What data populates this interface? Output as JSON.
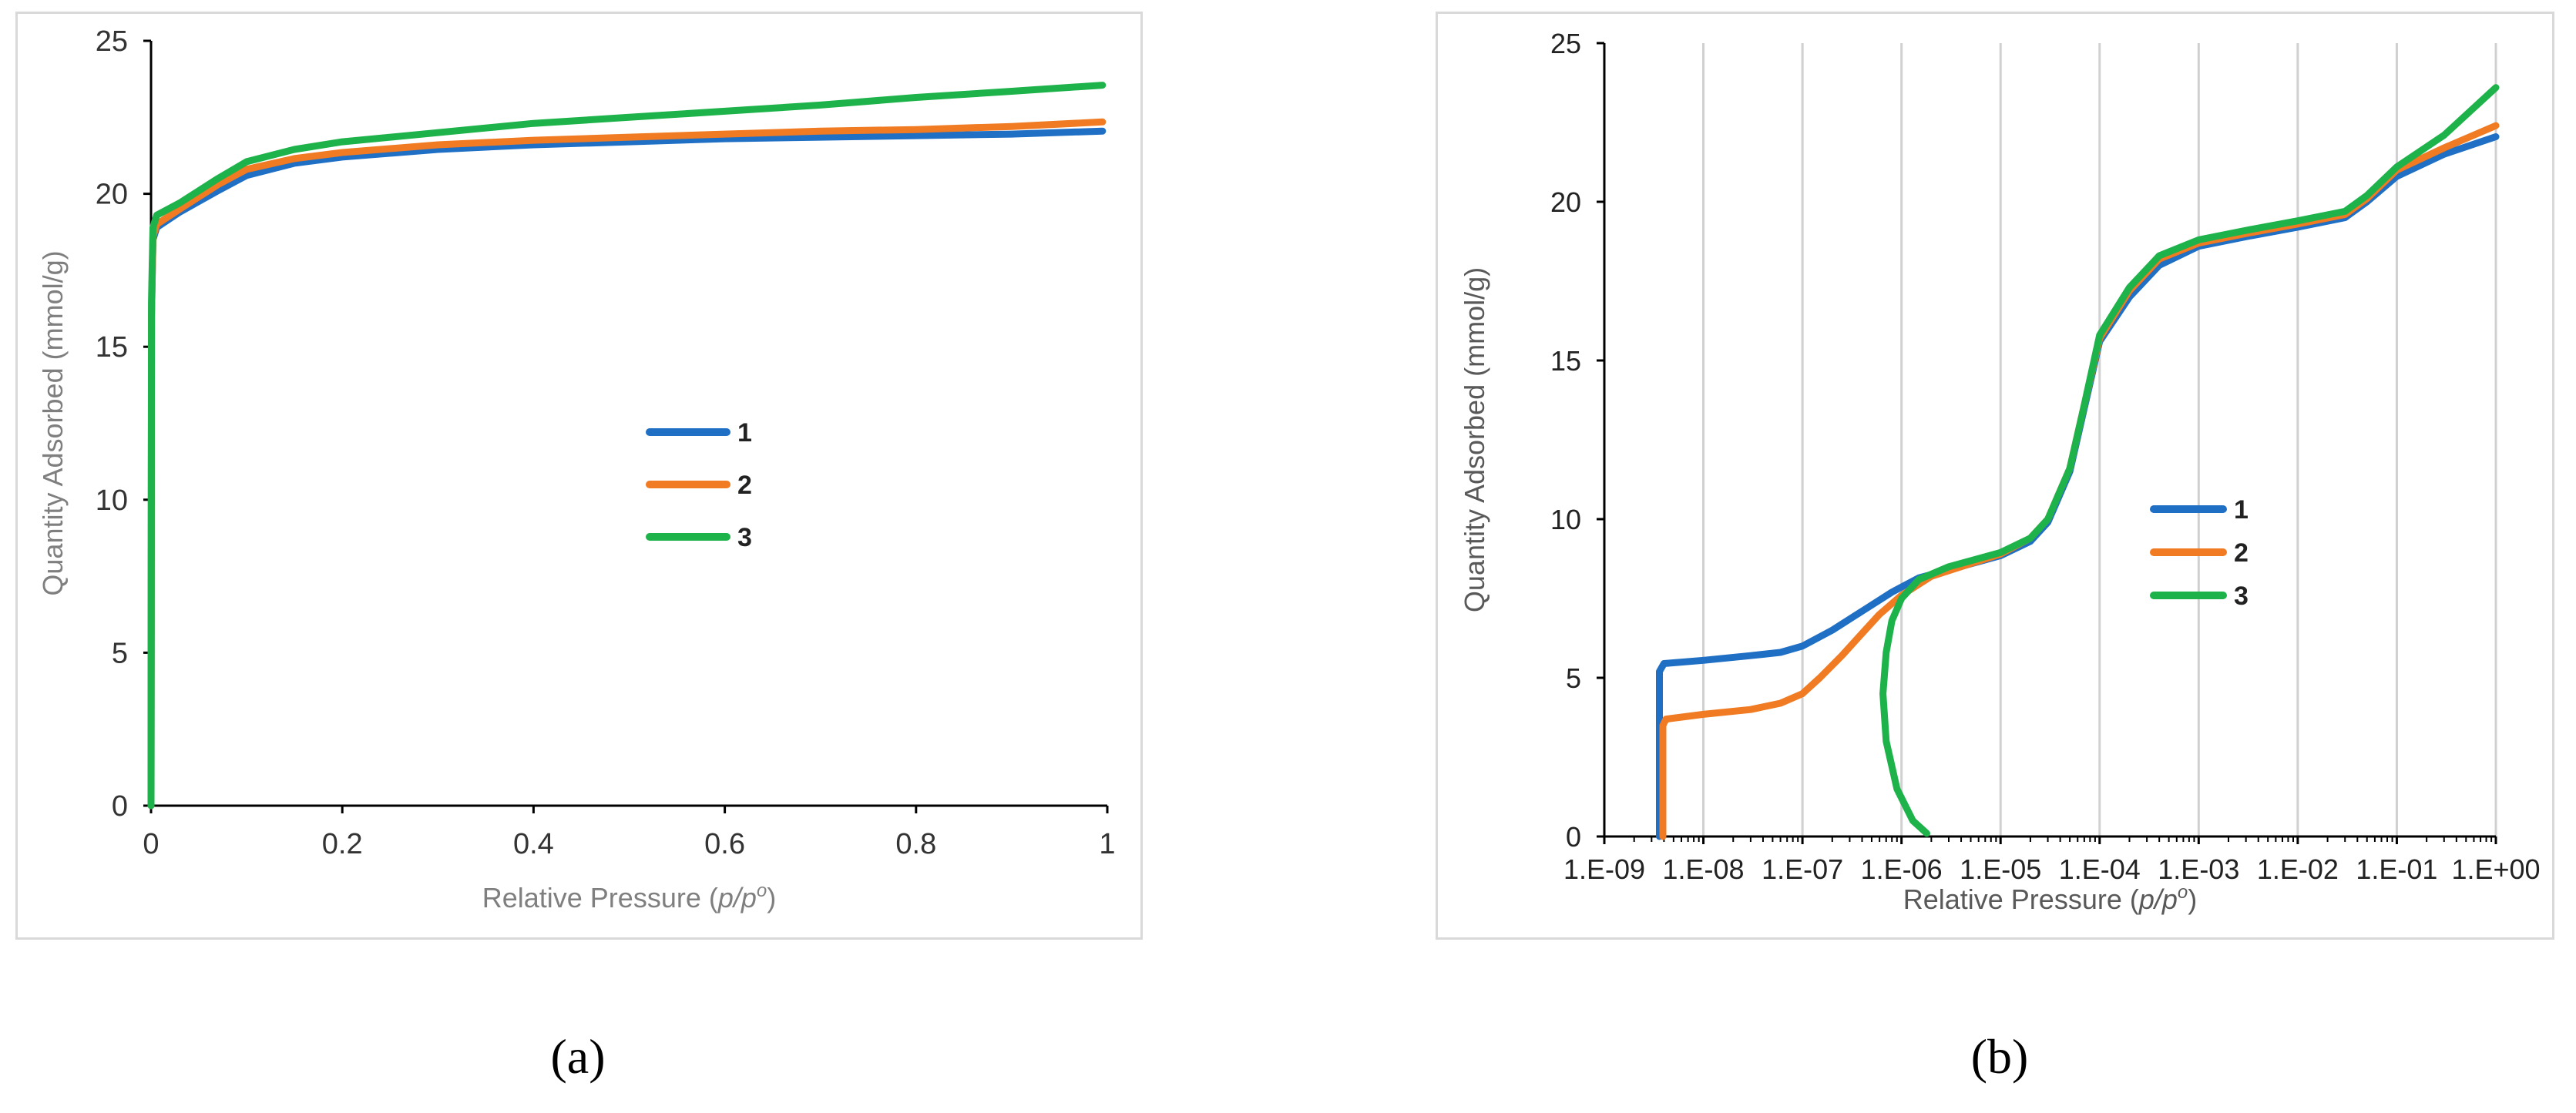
{
  "panels": [
    {
      "caption": "(a)",
      "ylabel": "Quantity Adsorbed (mmol/g)",
      "xlabel_prefix": "Relative Pressure (",
      "xlabel_italic": "p/p",
      "xlabel_sup": "o",
      "xlabel_suffix": ")"
    },
    {
      "caption": "(b)",
      "ylabel": "Quantity Adsorbed (mmol/g)",
      "xlabel_prefix": "Relative Pressure (",
      "xlabel_italic": "p/p",
      "xlabel_sup": "o",
      "xlabel_suffix": ")"
    }
  ],
  "chart_data": [
    {
      "type": "line",
      "title": "",
      "xlabel": "Relative Pressure (p/po)",
      "ylabel": "Quantity Adsorbed (mmol/g)",
      "xlim": [
        0,
        1
      ],
      "ylim": [
        0,
        25
      ],
      "xscale": "linear",
      "x_ticks": [
        "0",
        "0.2",
        "0.4",
        "0.6",
        "0.8",
        "1"
      ],
      "y_ticks": [
        "0",
        "5",
        "10",
        "15",
        "20",
        "25"
      ],
      "grid": false,
      "legend_position": "center",
      "series": [
        {
          "name": "1",
          "color": "#1f6fc5",
          "points": [
            [
              0,
              0
            ],
            [
              0.0005,
              16
            ],
            [
              0.002,
              18.5
            ],
            [
              0.006,
              18.9
            ],
            [
              0.03,
              19.4
            ],
            [
              0.07,
              20.1
            ],
            [
              0.1,
              20.6
            ],
            [
              0.15,
              21.0
            ],
            [
              0.2,
              21.2
            ],
            [
              0.3,
              21.45
            ],
            [
              0.4,
              21.6
            ],
            [
              0.5,
              21.7
            ],
            [
              0.6,
              21.8
            ],
            [
              0.7,
              21.85
            ],
            [
              0.8,
              21.9
            ],
            [
              0.9,
              21.95
            ],
            [
              0.995,
              22.05
            ]
          ]
        },
        {
          "name": "2",
          "color": "#f07b22",
          "points": [
            [
              0,
              0
            ],
            [
              0.0005,
              16
            ],
            [
              0.002,
              18.6
            ],
            [
              0.006,
              19.0
            ],
            [
              0.03,
              19.5
            ],
            [
              0.07,
              20.3
            ],
            [
              0.1,
              20.8
            ],
            [
              0.15,
              21.15
            ],
            [
              0.2,
              21.35
            ],
            [
              0.3,
              21.6
            ],
            [
              0.4,
              21.75
            ],
            [
              0.5,
              21.85
            ],
            [
              0.6,
              21.95
            ],
            [
              0.7,
              22.05
            ],
            [
              0.8,
              22.1
            ],
            [
              0.9,
              22.2
            ],
            [
              0.995,
              22.35
            ]
          ]
        },
        {
          "name": "3",
          "color": "#1db34a",
          "points": [
            [
              0,
              0
            ],
            [
              0.0005,
              16.5
            ],
            [
              0.002,
              18.9
            ],
            [
              0.006,
              19.3
            ],
            [
              0.03,
              19.7
            ],
            [
              0.07,
              20.5
            ],
            [
              0.1,
              21.05
            ],
            [
              0.15,
              21.45
            ],
            [
              0.2,
              21.7
            ],
            [
              0.3,
              22.0
            ],
            [
              0.4,
              22.3
            ],
            [
              0.5,
              22.5
            ],
            [
              0.6,
              22.7
            ],
            [
              0.7,
              22.9
            ],
            [
              0.8,
              23.15
            ],
            [
              0.9,
              23.35
            ],
            [
              0.995,
              23.55
            ]
          ]
        }
      ]
    },
    {
      "type": "line",
      "title": "",
      "xlabel": "Relative Pressure (p/po)",
      "ylabel": "Quantity Adsorbed (mmol/g)",
      "xlim": [
        1e-09,
        1
      ],
      "ylim": [
        0,
        25
      ],
      "xscale": "log",
      "x_ticks": [
        "1.E-09",
        "1.E-08",
        "1.E-07",
        "1.E-06",
        "1.E-05",
        "1.E-04",
        "1.E-03",
        "1.E-02",
        "1.E-01",
        "1.E+00"
      ],
      "y_ticks": [
        "0",
        "5",
        "10",
        "15",
        "20",
        "25"
      ],
      "grid": true,
      "legend_position": "center-right",
      "series": [
        {
          "name": "1",
          "color": "#1f6fc5",
          "points": [
            [
              3.6e-09,
              0
            ],
            [
              3.6e-09,
              5.2
            ],
            [
              4e-09,
              5.45
            ],
            [
              1e-08,
              5.55
            ],
            [
              3e-08,
              5.7
            ],
            [
              6e-08,
              5.8
            ],
            [
              1e-07,
              6.0
            ],
            [
              2e-07,
              6.5
            ],
            [
              4e-07,
              7.1
            ],
            [
              8e-07,
              7.7
            ],
            [
              1.5e-06,
              8.15
            ],
            [
              3e-06,
              8.4
            ],
            [
              1e-05,
              8.85
            ],
            [
              2e-05,
              9.3
            ],
            [
              3e-05,
              9.9
            ],
            [
              5e-05,
              11.5
            ],
            [
              7e-05,
              13.5
            ],
            [
              0.0001,
              15.6
            ],
            [
              0.0002,
              17.0
            ],
            [
              0.0004,
              18.0
            ],
            [
              0.001,
              18.6
            ],
            [
              0.003,
              18.9
            ],
            [
              0.01,
              19.2
            ],
            [
              0.03,
              19.5
            ],
            [
              0.05,
              20.0
            ],
            [
              0.1,
              20.8
            ],
            [
              0.3,
              21.5
            ],
            [
              1,
              22.05
            ]
          ]
        },
        {
          "name": "2",
          "color": "#f07b22",
          "points": [
            [
              3.9e-09,
              0
            ],
            [
              3.9e-09,
              3.5
            ],
            [
              4.2e-09,
              3.7
            ],
            [
              1e-08,
              3.85
            ],
            [
              3e-08,
              4.0
            ],
            [
              6e-08,
              4.2
            ],
            [
              1e-07,
              4.5
            ],
            [
              1.5e-07,
              5.0
            ],
            [
              2.5e-07,
              5.7
            ],
            [
              4e-07,
              6.4
            ],
            [
              6e-07,
              7.0
            ],
            [
              1e-06,
              7.6
            ],
            [
              2e-06,
              8.2
            ],
            [
              5e-06,
              8.6
            ],
            [
              1e-05,
              8.9
            ],
            [
              2e-05,
              9.4
            ],
            [
              3e-05,
              10.0
            ],
            [
              5e-05,
              11.6
            ],
            [
              7e-05,
              13.6
            ],
            [
              0.0001,
              15.7
            ],
            [
              0.0002,
              17.2
            ],
            [
              0.0004,
              18.2
            ],
            [
              0.001,
              18.7
            ],
            [
              0.003,
              19.0
            ],
            [
              0.01,
              19.3
            ],
            [
              0.03,
              19.6
            ],
            [
              0.05,
              20.1
            ],
            [
              0.1,
              21.0
            ],
            [
              0.3,
              21.7
            ],
            [
              1,
              22.4
            ]
          ]
        },
        {
          "name": "3",
          "color": "#1db34a",
          "points": [
            [
              1.8e-06,
              0.1
            ],
            [
              1.3e-06,
              0.5
            ],
            [
              9e-07,
              1.5
            ],
            [
              7e-07,
              3.0
            ],
            [
              6.5e-07,
              4.5
            ],
            [
              7e-07,
              5.8
            ],
            [
              8e-07,
              6.8
            ],
            [
              1e-06,
              7.5
            ],
            [
              1.5e-06,
              8.1
            ],
            [
              3e-06,
              8.5
            ],
            [
              1e-05,
              8.95
            ],
            [
              2e-05,
              9.4
            ],
            [
              3e-05,
              10.0
            ],
            [
              5e-05,
              11.6
            ],
            [
              7e-05,
              13.6
            ],
            [
              0.0001,
              15.8
            ],
            [
              0.0002,
              17.3
            ],
            [
              0.0004,
              18.3
            ],
            [
              0.001,
              18.8
            ],
            [
              0.003,
              19.1
            ],
            [
              0.01,
              19.4
            ],
            [
              0.03,
              19.7
            ],
            [
              0.05,
              20.2
            ],
            [
              0.1,
              21.1
            ],
            [
              0.3,
              22.1
            ],
            [
              1,
              23.6
            ]
          ]
        }
      ]
    }
  ]
}
